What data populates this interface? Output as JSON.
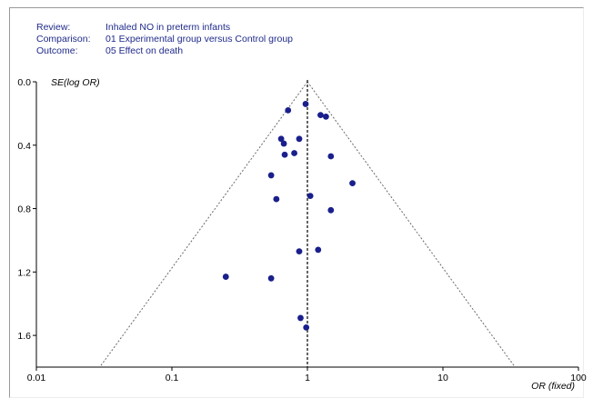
{
  "header": {
    "review_key": "Review:",
    "review_value": "Inhaled NO in preterm infants",
    "comparison_key": "Comparison:",
    "comparison_value": "01 Experimental group versus Control group",
    "outcome_key": "Outcome:",
    "outcome_value": "05 Effect on death"
  },
  "colors": {
    "points": "#1a1f8c",
    "header_text": "#1f2a8a",
    "axis": "#000000",
    "funnel": "#6a6a6a"
  },
  "chart_data": {
    "type": "scatter",
    "title": "",
    "xlabel": "OR (fixed)",
    "ylabel": "SE(log OR)",
    "x_scale": "log",
    "xlim": [
      0.01,
      100
    ],
    "ylim": [
      1.8,
      0.0
    ],
    "y_inverted": true,
    "x_ticks": [
      0.01,
      0.1,
      1,
      10,
      100
    ],
    "x_tick_labels": [
      "0.01",
      "0.1",
      "1",
      "10",
      "100"
    ],
    "y_ticks": [
      0.0,
      0.4,
      0.8,
      1.2,
      1.6
    ],
    "y_tick_labels": [
      "0.0",
      "0.4",
      "0.8",
      "1.2",
      "1.6"
    ],
    "reference_line_x": 1,
    "funnel": true,
    "grid": false,
    "points": [
      {
        "x": 0.72,
        "y": 0.18
      },
      {
        "x": 0.97,
        "y": 0.14
      },
      {
        "x": 1.25,
        "y": 0.21
      },
      {
        "x": 1.37,
        "y": 0.22
      },
      {
        "x": 0.64,
        "y": 0.36
      },
      {
        "x": 0.67,
        "y": 0.39
      },
      {
        "x": 0.87,
        "y": 0.36
      },
      {
        "x": 0.68,
        "y": 0.46
      },
      {
        "x": 0.8,
        "y": 0.45
      },
      {
        "x": 1.49,
        "y": 0.47
      },
      {
        "x": 0.54,
        "y": 0.59
      },
      {
        "x": 2.15,
        "y": 0.64
      },
      {
        "x": 0.59,
        "y": 0.74
      },
      {
        "x": 1.05,
        "y": 0.72
      },
      {
        "x": 1.49,
        "y": 0.81
      },
      {
        "x": 0.87,
        "y": 1.07
      },
      {
        "x": 1.2,
        "y": 1.06
      },
      {
        "x": 0.25,
        "y": 1.23
      },
      {
        "x": 0.54,
        "y": 1.24
      },
      {
        "x": 0.89,
        "y": 1.49
      },
      {
        "x": 0.98,
        "y": 1.55
      }
    ]
  }
}
